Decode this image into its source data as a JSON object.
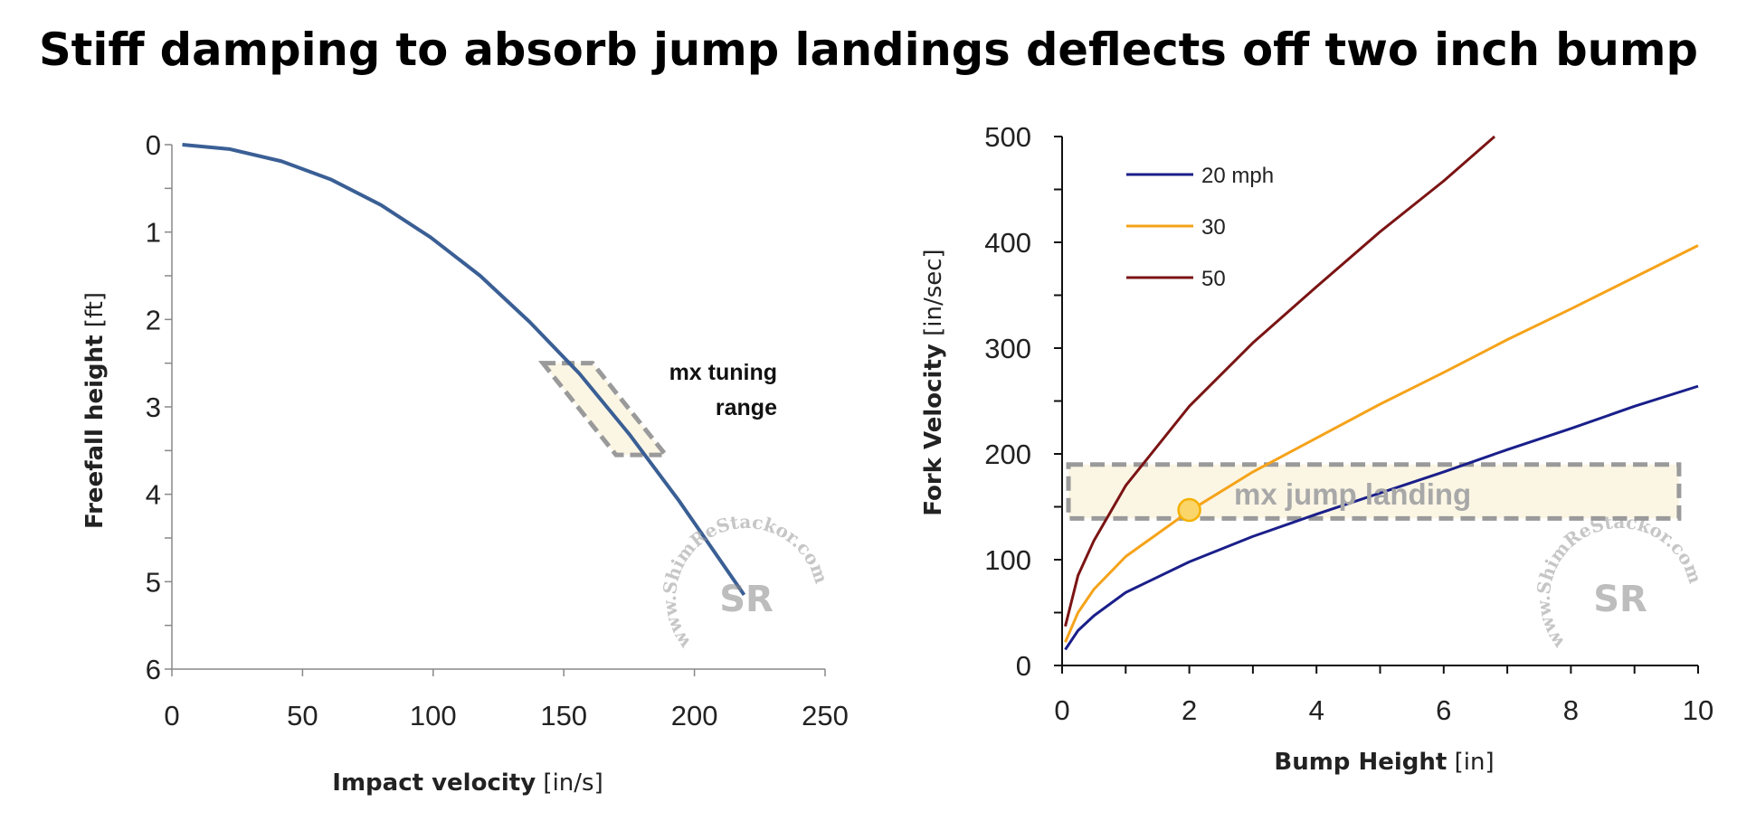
{
  "title": "Stiff damping to absorb jump landings deflects off two inch bump",
  "watermark": {
    "text": "www.ShimReStackor.com",
    "logo": "SR"
  },
  "colors": {
    "left_curve": "#3a5f95",
    "s20": "#1a1f8a",
    "s30": "#f5a31a",
    "s50": "#7b1414",
    "highlight_fill": "#fbf5e4",
    "highlight_stroke": "#9a9a9a",
    "marker": "#f9d56a"
  },
  "chart_data": [
    {
      "type": "line",
      "xlabel": "Impact velocity",
      "xunit": "[in/s]",
      "ylabel": "Freefall height",
      "yunit": "[ft]",
      "xlim": [
        0,
        250
      ],
      "ylim": [
        0,
        6
      ],
      "y_inverted": true,
      "xticks": [
        "0",
        "50",
        "100",
        "150",
        "200",
        "250"
      ],
      "yticks": [
        "0",
        "1",
        "2",
        "3",
        "4",
        "5",
        "6"
      ],
      "grid": false,
      "x": [
        4,
        22,
        42,
        61,
        80,
        99,
        118,
        137,
        156,
        175,
        194,
        219
      ],
      "y": [
        0.0,
        0.05,
        0.19,
        0.4,
        0.69,
        1.06,
        1.5,
        2.03,
        2.62,
        3.31,
        4.07,
        5.15
      ],
      "annotation": {
        "label_line1": "mx tuning range",
        "label_line1a": "mx tuning",
        "label_line2": "range",
        "region": [
          [
            142,
            2.5
          ],
          [
            161,
            2.5
          ],
          [
            189,
            3.55
          ],
          [
            170,
            3.55
          ]
        ]
      }
    },
    {
      "type": "line",
      "xlabel": "Bump Height",
      "xunit": "[in]",
      "ylabel": "Fork Velocity",
      "yunit": "[in/sec]",
      "xlim": [
        0,
        10
      ],
      "ylim": [
        0,
        500
      ],
      "xticks": [
        "0",
        "2",
        "4",
        "6",
        "8",
        "10"
      ],
      "yticks": [
        "0",
        "100",
        "200",
        "300",
        "400",
        "500"
      ],
      "grid": false,
      "legend": "top-left",
      "series": [
        {
          "name": "20 mph",
          "x": [
            0.05,
            0.25,
            0.5,
            1,
            2,
            3,
            4,
            5,
            6,
            7,
            8,
            9,
            10
          ],
          "y": [
            15,
            33,
            47,
            69,
            98,
            122,
            143,
            163,
            183,
            204,
            224,
            245,
            264
          ]
        },
        {
          "name": "30",
          "x": [
            0.05,
            0.25,
            0.5,
            1,
            2,
            3,
            4,
            5,
            6,
            7,
            8,
            9,
            10
          ],
          "y": [
            22,
            50,
            72,
            103,
            146,
            183,
            215,
            247,
            277,
            308,
            337,
            367,
            397
          ]
        },
        {
          "name": "50",
          "x": [
            0.05,
            0.25,
            0.5,
            1,
            2,
            3,
            4,
            5,
            6,
            6.8
          ],
          "y": [
            37,
            85,
            118,
            170,
            245,
            305,
            358,
            410,
            458,
            500
          ]
        }
      ],
      "annotation": {
        "label": "mx jump landing",
        "x_range": [
          0.1,
          9.7
        ],
        "y_range": [
          139,
          190
        ],
        "marker": [
          2,
          147
        ]
      }
    }
  ]
}
